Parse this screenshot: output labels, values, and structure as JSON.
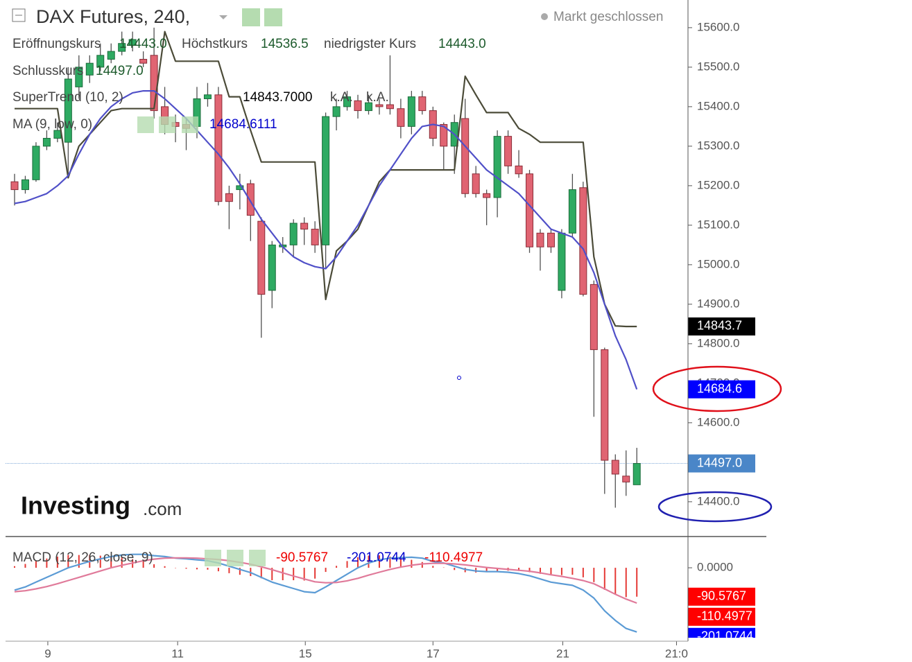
{
  "header": {
    "title": "DAX Futures, 240,",
    "status": "Markt geschlossen"
  },
  "watermark": {
    "brand": "Investing",
    "suffix": ".com"
  },
  "chart_data": [
    {
      "type": "candlestick",
      "x": [
        0,
        1,
        2,
        3,
        4,
        5,
        6,
        7,
        8,
        9,
        10,
        11,
        12,
        13,
        14,
        15,
        16,
        17,
        18,
        19,
        20,
        21,
        22,
        23,
        24,
        25,
        26,
        27,
        28,
        29,
        30,
        31,
        32,
        33,
        34,
        35,
        36,
        37,
        38,
        39,
        40,
        41,
        42,
        43,
        44,
        45,
        46,
        47,
        48,
        49,
        50,
        51,
        52,
        53,
        54,
        55,
        56,
        57,
        58
      ],
      "open": [
        15210,
        15190,
        15215,
        15300,
        15320,
        15310,
        15450,
        15480,
        15500,
        15520,
        15540,
        15555,
        15520,
        15530,
        15400,
        15360,
        15355,
        15350,
        15420,
        15430,
        15180,
        15190,
        15205,
        15110,
        14935,
        15045,
        15050,
        15105,
        15090,
        15050,
        15375,
        15400,
        15415,
        15390,
        15405,
        15405,
        15395,
        15350,
        15425,
        15390,
        15355,
        15300,
        15370,
        15230,
        15180,
        15170,
        15325,
        15250,
        15230,
        15080,
        15080,
        14935,
        15080,
        15195,
        14950,
        14785,
        14505,
        14465,
        14443
      ],
      "high": [
        15230,
        15225,
        15310,
        15340,
        15360,
        15500,
        15530,
        15530,
        15560,
        15560,
        15590,
        15590,
        15540,
        15600,
        15450,
        15380,
        15370,
        15450,
        15460,
        15450,
        15200,
        15230,
        15215,
        15120,
        15060,
        15070,
        15115,
        15120,
        15110,
        15385,
        15420,
        15440,
        15430,
        15430,
        15420,
        15530,
        15420,
        15440,
        15440,
        15400,
        15360,
        15380,
        15420,
        15250,
        15190,
        15340,
        15340,
        15290,
        15240,
        15090,
        15090,
        15090,
        15230,
        15210,
        14960,
        14790,
        14520,
        14530,
        14536.5
      ],
      "low": [
        15150,
        15180,
        15210,
        15290,
        15310,
        15230,
        15420,
        15460,
        15490,
        15510,
        15530,
        15540,
        15500,
        15370,
        15330,
        15310,
        15290,
        15320,
        15400,
        15150,
        15090,
        15140,
        15060,
        14815,
        14890,
        15030,
        15020,
        15050,
        15030,
        14990,
        15340,
        15390,
        15370,
        15380,
        15380,
        15380,
        15320,
        15330,
        15380,
        15300,
        15240,
        15230,
        15170,
        15170,
        15100,
        15120,
        15230,
        15220,
        15030,
        14985,
        15030,
        14915,
        15070,
        14920,
        14615,
        14420,
        14385,
        14415,
        14443
      ],
      "close": [
        15190,
        15215,
        15300,
        15320,
        15340,
        15470,
        15500,
        15510,
        15530,
        15540,
        15560,
        15570,
        15510,
        15390,
        15355,
        15350,
        15345,
        15420,
        15430,
        15160,
        15160,
        15200,
        15125,
        14925,
        15050,
        15050,
        15105,
        15090,
        15050,
        15375,
        15400,
        15425,
        15390,
        15410,
        15400,
        15395,
        15350,
        15425,
        15390,
        15320,
        15300,
        15360,
        15180,
        15180,
        15170,
        15325,
        15250,
        15230,
        15045,
        15045,
        15045,
        15080,
        15190,
        14925,
        14785,
        14505,
        14470,
        14450,
        14497
      ],
      "up_color": "#2eaa62",
      "down_color": "#e06472",
      "xlim": [
        -0.84,
        62.77
      ],
      "ylim": [
        14312,
        15670
      ],
      "yticks": [
        {
          "value": 14400,
          "label": "14400.0"
        },
        {
          "value": 14500,
          "label": "14500.0"
        },
        {
          "value": 14600,
          "label": "14600.0"
        },
        {
          "value": 14700,
          "label": "14700.0"
        },
        {
          "value": 14800,
          "label": "14800.0"
        },
        {
          "value": 14900,
          "label": "14900.0"
        },
        {
          "value": 15000,
          "label": "15000.0"
        },
        {
          "value": 15100,
          "label": "15100.0"
        },
        {
          "value": 15200,
          "label": "15200.0"
        },
        {
          "value": 15300,
          "label": "15300.0"
        },
        {
          "value": 15400,
          "label": "15400.0"
        },
        {
          "value": 15500,
          "label": "15500.0"
        },
        {
          "value": 15600,
          "label": "15600.0"
        }
      ],
      "legend": {
        "open": {
          "name": "Eröffnungskurs",
          "value": "14443.0"
        },
        "high": {
          "name": "Höchstkurs",
          "value": "14536.5"
        },
        "low": {
          "name": "niedrigster Kurs",
          "value": "14443.0"
        },
        "close": {
          "name": "Schlusskurs",
          "value": "14497.0"
        }
      },
      "series": [
        {
          "name": "SuperTrend (10, 2)",
          "color": "#4b4b38",
          "last_label": "14843.7000",
          "na": [
            "k.A.",
            "k.A."
          ],
          "tag": "14843.7",
          "tag_color": "#000000",
          "values": [
            15395,
            15395,
            15395,
            15395,
            15395,
            15220,
            15300,
            15330,
            15360,
            15390,
            15395,
            15395,
            15395,
            15395,
            15590,
            15515,
            15515,
            15515,
            15515,
            15515,
            15425,
            15425,
            15340,
            15260,
            15260,
            15260,
            15260,
            15260,
            15260,
            14912,
            15035,
            15060,
            15090,
            15150,
            15210,
            15240,
            15240,
            15240,
            15240,
            15240,
            15240,
            15240,
            15477,
            15430,
            15385,
            15385,
            15385,
            15345,
            15330,
            15310,
            15310,
            15310,
            15310,
            15310,
            15020,
            14900,
            14845,
            14843.7,
            14843.7
          ]
        },
        {
          "name": "MA (9, low, 0)",
          "color": "#5050c8",
          "last_label": "14684.6111",
          "tag": "14684.6",
          "tag_color": "#0000ff",
          "values": [
            15155,
            15160,
            15170,
            15180,
            15200,
            15225,
            15280,
            15330,
            15370,
            15400,
            15420,
            15435,
            15440,
            15440,
            15420,
            15395,
            15370,
            15340,
            15310,
            15280,
            15245,
            15205,
            15160,
            15115,
            15080,
            15045,
            15020,
            15005,
            14995,
            14990,
            15020,
            15060,
            15100,
            15150,
            15200,
            15240,
            15280,
            15320,
            15350,
            15355,
            15350,
            15330,
            15300,
            15270,
            15240,
            15220,
            15200,
            15180,
            15150,
            15120,
            15090,
            15080,
            15070,
            15040,
            14980,
            14900,
            14820,
            14760,
            14684.6111
          ]
        }
      ],
      "last_price": {
        "value": 14497,
        "label": "14497.0",
        "color": "#4a86c8"
      }
    },
    {
      "type": "macd",
      "title": "MACD (12, 26, close, 9)",
      "x": [
        0,
        1,
        2,
        3,
        4,
        5,
        6,
        7,
        8,
        9,
        10,
        11,
        12,
        13,
        14,
        15,
        16,
        17,
        18,
        19,
        20,
        21,
        22,
        23,
        24,
        25,
        26,
        27,
        28,
        29,
        30,
        31,
        32,
        33,
        34,
        35,
        36,
        37,
        38,
        39,
        40,
        41,
        42,
        43,
        44,
        45,
        46,
        47,
        48,
        49,
        50,
        51,
        52,
        53,
        54,
        55,
        56,
        57,
        58
      ],
      "xlim": [
        -0.84,
        62.77
      ],
      "ylim": [
        -230,
        93.5
      ],
      "yticks": [
        {
          "value": 0,
          "label": "0.0000"
        }
      ],
      "xticks": [
        {
          "value": 3.1,
          "label": "9"
        },
        {
          "value": 15.2,
          "label": "11"
        },
        {
          "value": 27.1,
          "label": "15"
        },
        {
          "value": 39.0,
          "label": "17"
        },
        {
          "value": 51.1,
          "label": "21"
        },
        {
          "value": 61.7,
          "label": "21:0"
        }
      ],
      "series": [
        {
          "style": "histogram",
          "color": "#e53935",
          "last_label": "-90.5767",
          "tag": "-90.5767",
          "tag_color": "#ff0000",
          "values": [
            5,
            12,
            21,
            29,
            35,
            40,
            40,
            40,
            38,
            35,
            32,
            27,
            20,
            11,
            5,
            -1,
            -3,
            -5,
            -6,
            -11,
            -17,
            -22,
            -26,
            -33,
            -39,
            -39,
            -39,
            -40,
            -34,
            -13,
            6,
            21,
            33,
            38,
            39,
            35,
            30,
            25,
            18,
            6,
            1,
            -7,
            -14,
            -15,
            -13,
            -10,
            -9,
            -10,
            -14,
            -19,
            -23,
            -23,
            -22,
            -30,
            -45,
            -69,
            -82,
            -92,
            -90.5767
          ]
        },
        {
          "style": "line",
          "color": "#5b9bd5",
          "last_label": "-201.0744",
          "tag": "-201.0744",
          "tag_color": "#0000ff",
          "values": [
            -70,
            -60,
            -45,
            -30,
            -15,
            0,
            10,
            20,
            28,
            35,
            40,
            42,
            42,
            38,
            35,
            30,
            28,
            25,
            22,
            15,
            5,
            -5,
            -15,
            -30,
            -45,
            -55,
            -65,
            -75,
            -78,
            -60,
            -40,
            -20,
            0,
            15,
            25,
            30,
            32,
            33,
            30,
            20,
            15,
            5,
            -5,
            -10,
            -12,
            -12,
            -14,
            -18,
            -25,
            -35,
            -45,
            -50,
            -55,
            -70,
            -95,
            -135,
            -165,
            -190,
            -201.0744
          ]
        },
        {
          "style": "line",
          "color": "#e07a9a",
          "last_label": "-110.4977",
          "tag": "-110.4977",
          "tag_color": "#ff0000",
          "values": [
            -75,
            -72,
            -66,
            -59,
            -50,
            -40,
            -30,
            -20,
            -10,
            0,
            8,
            15,
            22,
            27,
            30,
            31,
            31,
            30,
            28,
            26,
            22,
            17,
            11,
            3,
            -6,
            -16,
            -26,
            -35,
            -44,
            -47,
            -46,
            -41,
            -33,
            -23,
            -14,
            -5,
            2,
            8,
            12,
            14,
            14,
            12,
            9,
            5,
            1,
            -2,
            -5,
            -8,
            -11,
            -16,
            -22,
            -27,
            -33,
            -40,
            -50,
            -66,
            -83,
            -98,
            -110.4977
          ]
        }
      ]
    }
  ]
}
